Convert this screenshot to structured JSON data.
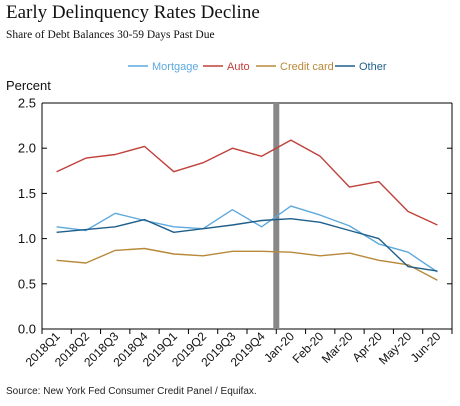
{
  "header": {
    "title": "Early Delinquency Rates Decline",
    "subtitle": "Share of Debt Balances 30-59 Days Past Due"
  },
  "source": "Source: New York Fed Consumer Credit Panel / Equifax.",
  "chart_data": {
    "type": "line",
    "title": "Early Delinquency Rates Decline",
    "subtitle": "Share of Debt Balances 30-59 Days Past Due",
    "ylabel": "Percent",
    "xlabel": "",
    "ylim": [
      0,
      2.5
    ],
    "yticks": [
      "0.0",
      "0.5",
      "1.0",
      "1.5",
      "2.0",
      "2.5"
    ],
    "legend_position": "top",
    "grid": false,
    "quarterly_categories": [
      "2018Q1",
      "2018Q2",
      "2018Q3",
      "2018Q4",
      "2019Q1",
      "2019Q2",
      "2019Q3",
      "2019Q4"
    ],
    "monthly_categories": [
      "Jan-20",
      "Feb-20",
      "Mar-20",
      "Apr-20",
      "May-20",
      "Jun-20"
    ],
    "divider_after": "2019Q4",
    "divider_color": "#888888",
    "series": [
      {
        "name": "Mortgage",
        "color": "#5da9dd",
        "quarterly": [
          1.13,
          1.09,
          1.28,
          1.2,
          1.13,
          1.11,
          1.32,
          1.13
        ],
        "monthly": [
          1.36,
          1.26,
          1.14,
          0.94,
          0.85,
          0.63
        ]
      },
      {
        "name": "Auto",
        "color": "#c0403a",
        "quarterly": [
          1.74,
          1.89,
          1.93,
          2.02,
          1.74,
          1.84,
          2.0,
          1.91
        ],
        "monthly": [
          2.09,
          1.91,
          1.57,
          1.63,
          1.3,
          1.15
        ]
      },
      {
        "name": "Credit card",
        "color": "#b8893a",
        "quarterly": [
          0.76,
          0.73,
          0.87,
          0.89,
          0.83,
          0.81,
          0.86,
          0.86
        ],
        "monthly": [
          0.85,
          0.81,
          0.84,
          0.76,
          0.71,
          0.54
        ]
      },
      {
        "name": "Other",
        "color": "#1f5f8b",
        "quarterly": [
          1.07,
          1.1,
          1.13,
          1.21,
          1.07,
          1.11,
          1.15,
          1.2
        ],
        "monthly": [
          1.22,
          1.18,
          1.09,
          1.0,
          0.69,
          0.64
        ]
      }
    ]
  }
}
